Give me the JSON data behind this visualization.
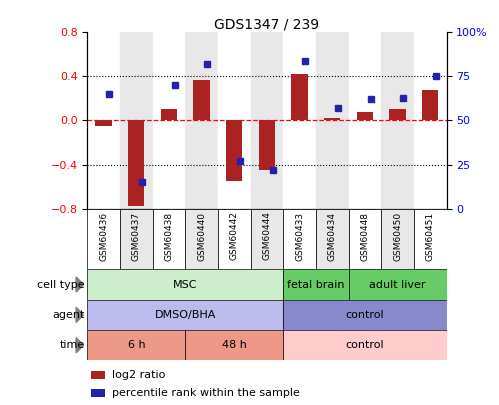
{
  "title": "GDS1347 / 239",
  "samples": [
    "GSM60436",
    "GSM60437",
    "GSM60438",
    "GSM60440",
    "GSM60442",
    "GSM60444",
    "GSM60433",
    "GSM60434",
    "GSM60448",
    "GSM60450",
    "GSM60451"
  ],
  "log2_ratio": [
    -0.05,
    -0.78,
    0.1,
    0.37,
    -0.55,
    -0.45,
    0.42,
    0.02,
    0.08,
    0.1,
    0.28
  ],
  "pct_rank": [
    65,
    15,
    70,
    82,
    27,
    22,
    84,
    57,
    62,
    63,
    75
  ],
  "ylim_left": [
    -0.8,
    0.8
  ],
  "ylim_right": [
    0,
    100
  ],
  "yticks_left": [
    -0.8,
    -0.4,
    0.0,
    0.4,
    0.8
  ],
  "yticks_right": [
    0,
    25,
    50,
    75,
    100
  ],
  "yticklabels_right": [
    "0",
    "25",
    "50",
    "75",
    "100%"
  ],
  "bar_color": "#aa2222",
  "dot_color": "#2222aa",
  "cell_type_labels": [
    {
      "label": "MSC",
      "start": 0,
      "end": 5,
      "color": "#cceecc"
    },
    {
      "label": "fetal brain",
      "start": 6,
      "end": 7,
      "color": "#66cc66"
    },
    {
      "label": "adult liver",
      "start": 8,
      "end": 10,
      "color": "#66cc66"
    }
  ],
  "agent_labels": [
    {
      "label": "DMSO/BHA",
      "start": 0,
      "end": 5,
      "color": "#bbbbee"
    },
    {
      "label": "control",
      "start": 6,
      "end": 10,
      "color": "#8888cc"
    }
  ],
  "time_labels": [
    {
      "label": "6 h",
      "start": 0,
      "end": 2,
      "color": "#ee9988"
    },
    {
      "label": "48 h",
      "start": 3,
      "end": 5,
      "color": "#ee9988"
    },
    {
      "label": "control",
      "start": 6,
      "end": 10,
      "color": "#ffcccc"
    }
  ],
  "legend_items": [
    {
      "color": "#aa2222",
      "label": "log2 ratio"
    },
    {
      "color": "#2222aa",
      "label": "percentile rank within the sample"
    }
  ],
  "row_labels": [
    "cell type",
    "agent",
    "time"
  ],
  "background_color": "#ffffff",
  "col_bg_odd": "#e8e8e8",
  "col_bg_even": "#ffffff",
  "tick_box_color": "#d0d0d0"
}
